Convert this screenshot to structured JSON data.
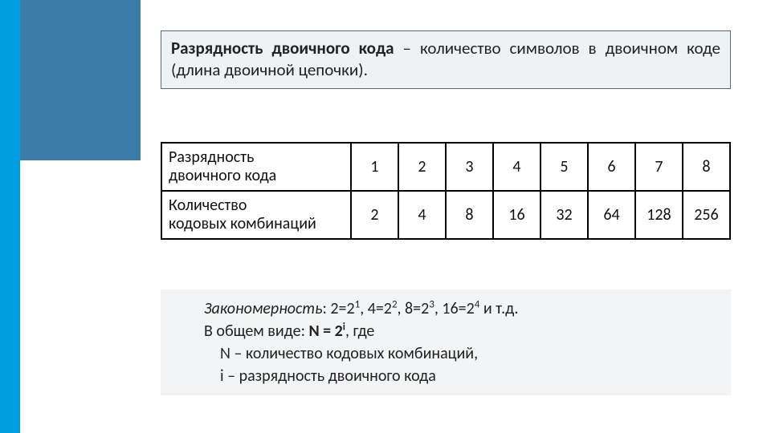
{
  "definition": {
    "term": "Разрядность двоичного кода",
    "dash": " – ",
    "rest": "количество символов в двоичном коде (длина двоичной цепочки)."
  },
  "table": {
    "row1_label_l1": "Разрядность",
    "row1_label_l2": "двоичного кода",
    "row2_label_l1": "Количество",
    "row2_label_l2": "кодовых комбинаций",
    "bits": [
      "1",
      "2",
      "3",
      "4",
      "5",
      "6",
      "7",
      "8"
    ],
    "combs": [
      "2",
      "4",
      "8",
      "16",
      "32",
      "64",
      "128",
      "256"
    ]
  },
  "formula": {
    "label": "Закономерность",
    "eq1_a": ": 2=2",
    "eq1_s1": "1",
    "eq2_a": ", 4=2",
    "eq2_s": "2",
    "eq3_a": ", 8=2",
    "eq3_s": "3",
    "eq4_a": ", 16=2",
    "eq4_s": "4",
    "eq_tail": " и т.д.",
    "gen_a": "В общем виде:  ",
    "gen_b": "N = 2",
    "gen_sup": "i",
    "gen_c": ", где",
    "n_def": "N – количество кодовых комбинаций,",
    "i_def": "i – разрядность двоичного кода"
  },
  "colors": {
    "sidebar": "#009fdf",
    "topbar": "#3c7ca8",
    "defbox_bg": "#eef2f5",
    "formula_bg": "#f2f4f6",
    "border": "#000000"
  }
}
